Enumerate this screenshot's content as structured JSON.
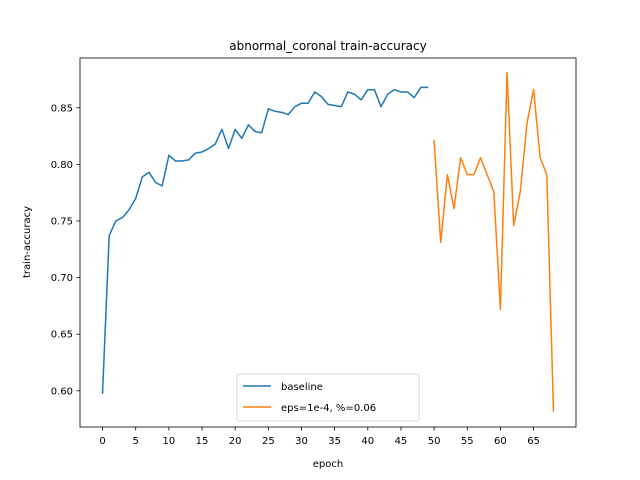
{
  "chart_data": {
    "type": "line",
    "title": "abnormal_coronal train-accuracy",
    "xlabel": "epoch",
    "ylabel": "train-accuracy",
    "xlim": [
      -3.4,
      71.4
    ],
    "ylim": [
      0.568,
      0.894
    ],
    "xticks": [
      0,
      5,
      10,
      15,
      20,
      25,
      30,
      35,
      40,
      45,
      50,
      55,
      60,
      65
    ],
    "yticks": [
      0.6,
      0.65,
      0.7,
      0.75,
      0.8,
      0.85
    ],
    "ytick_labels": [
      "0.60",
      "0.65",
      "0.70",
      "0.75",
      "0.80",
      "0.85"
    ],
    "grid": false,
    "legend_position": "lower-center",
    "series": [
      {
        "name": "baseline",
        "color": "#1f77b4",
        "x": [
          0,
          1,
          2,
          3,
          4,
          5,
          6,
          7,
          8,
          9,
          10,
          11,
          12,
          13,
          14,
          15,
          16,
          17,
          18,
          19,
          20,
          21,
          22,
          23,
          24,
          25,
          26,
          27,
          28,
          29,
          30,
          31,
          32,
          33,
          34,
          35,
          36,
          37,
          38,
          39,
          40,
          41,
          42,
          43,
          44,
          45,
          46,
          47,
          48,
          49
        ],
        "y": [
          0.598,
          0.737,
          0.75,
          0.753,
          0.76,
          0.77,
          0.789,
          0.793,
          0.784,
          0.781,
          0.808,
          0.803,
          0.803,
          0.804,
          0.81,
          0.811,
          0.814,
          0.818,
          0.831,
          0.814,
          0.831,
          0.823,
          0.835,
          0.829,
          0.828,
          0.849,
          0.847,
          0.846,
          0.844,
          0.851,
          0.854,
          0.854,
          0.864,
          0.86,
          0.853,
          0.852,
          0.851,
          0.864,
          0.862,
          0.857,
          0.866,
          0.866,
          0.851,
          0.862,
          0.866,
          0.864,
          0.864,
          0.859,
          0.868,
          0.868
        ]
      },
      {
        "name": "eps=1e-4, %=0.06",
        "color": "#ff7f0e",
        "x": [
          50,
          51,
          52,
          53,
          54,
          55,
          56,
          57,
          58,
          59,
          60,
          61,
          62,
          63,
          64,
          65,
          66,
          67,
          68
        ],
        "y": [
          0.821,
          0.731,
          0.791,
          0.761,
          0.806,
          0.791,
          0.791,
          0.806,
          0.791,
          0.776,
          0.672,
          0.881,
          0.746,
          0.776,
          0.836,
          0.866,
          0.806,
          0.791,
          0.582
        ]
      }
    ]
  }
}
